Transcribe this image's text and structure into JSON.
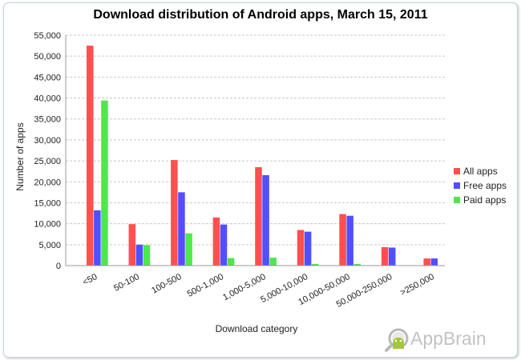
{
  "chart_data": {
    "type": "bar",
    "title": "Download distribution of Android apps, March 15, 2011",
    "xlabel": "Download category",
    "ylabel": "Number of apps",
    "categories": [
      "<50",
      "50-100",
      "100-500",
      "500-1,000",
      "1,000-5,000",
      "5,000-10,000",
      "10,000-50,000",
      "50,000-250,000",
      ">250,000"
    ],
    "y_ticks": [
      "0",
      "5,000",
      "10,000",
      "15,000",
      "20,000",
      "25,000",
      "30,000",
      "35,000",
      "40,000",
      "45,000",
      "50,000",
      "55,000"
    ],
    "ylim": [
      0,
      55000
    ],
    "grid": "horizontal dashed",
    "legend_position": "right",
    "series": [
      {
        "name": "All apps",
        "color": "#ff4f4f",
        "values": [
          52500,
          9900,
          25200,
          11500,
          23500,
          8500,
          12300,
          4400,
          1700
        ]
      },
      {
        "name": "Free apps",
        "color": "#5050ff",
        "values": [
          13200,
          5000,
          17500,
          9800,
          21600,
          8100,
          11900,
          4300,
          1700
        ]
      },
      {
        "name": "Paid apps",
        "color": "#4fe64f",
        "values": [
          39400,
          4900,
          7700,
          1800,
          1900,
          400,
          400,
          100,
          0
        ]
      }
    ]
  },
  "watermark": {
    "text": "AppBrain",
    "icon": "android-magnifier-logo"
  }
}
